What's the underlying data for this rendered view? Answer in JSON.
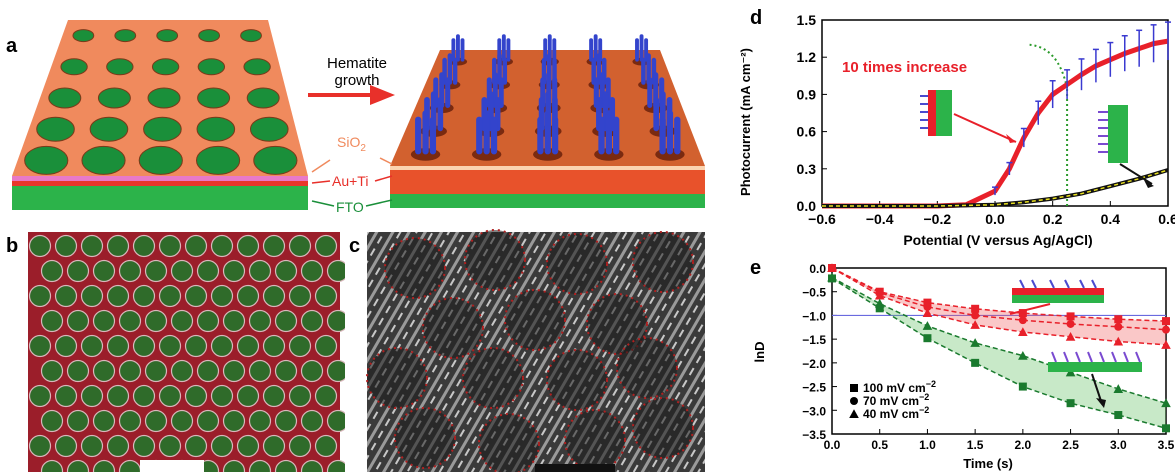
{
  "panels": {
    "a": {
      "label": "a",
      "arrow_text_line1": "Hematite",
      "arrow_text_line2": "growth",
      "layers": {
        "sio2_base": "SiO",
        "sio2_sub": "2",
        "auti": "Au+Ti",
        "fto": "FTO"
      },
      "colors": {
        "sio2": "#f08a5d",
        "auti": "#e8362b",
        "fto": "#2cb34a",
        "hole": "#1a8f3a",
        "nanorod": "#3344cc"
      }
    },
    "b": {
      "label": "b"
    },
    "c": {
      "label": "c"
    },
    "d": {
      "label": "d"
    },
    "e": {
      "label": "e"
    }
  },
  "chart_data": [
    {
      "panel": "d",
      "type": "line",
      "xlabel": "Potential (V versus Ag/AgCl)",
      "ylabel": "Photocurrent (mA cm⁻²)",
      "xlim": [
        -0.6,
        0.6
      ],
      "ylim": [
        0.0,
        1.5
      ],
      "xticks": [
        -0.6,
        -0.4,
        -0.2,
        0.0,
        0.2,
        0.4,
        0.6
      ],
      "xtick_labels": [
        "−0.6",
        "−0.4",
        "−0.2",
        "0.0",
        "0.2",
        "0.4",
        "0.6"
      ],
      "yticks": [
        0.0,
        0.3,
        0.6,
        0.9,
        1.2,
        1.5
      ],
      "ytick_labels": [
        "0.0",
        "0.3",
        "0.6",
        "0.9",
        "1.2",
        "1.5"
      ],
      "annotation": "10 times increase",
      "vline_x": 0.25,
      "series": [
        {
          "color": "#e8202a",
          "x": [
            -0.6,
            -0.4,
            -0.2,
            -0.1,
            0.0,
            0.05,
            0.1,
            0.15,
            0.2,
            0.25,
            0.3,
            0.35,
            0.4,
            0.45,
            0.5,
            0.55,
            0.6
          ],
          "y": [
            0.0,
            0.0,
            0.0,
            0.01,
            0.12,
            0.3,
            0.55,
            0.75,
            0.9,
            0.98,
            1.06,
            1.13,
            1.18,
            1.23,
            1.27,
            1.31,
            1.33
          ]
        },
        {
          "color": "#111111",
          "x": [
            -0.6,
            -0.4,
            -0.2,
            0.0,
            0.1,
            0.2,
            0.3,
            0.4,
            0.5,
            0.6
          ],
          "y": [
            0.0,
            0.0,
            0.0,
            0.01,
            0.03,
            0.06,
            0.1,
            0.16,
            0.22,
            0.29
          ]
        }
      ]
    },
    {
      "panel": "e",
      "type": "line",
      "xlabel": "Time (s)",
      "ylabel": "lnD",
      "xlim": [
        0.0,
        3.5
      ],
      "ylim": [
        -3.5,
        0.0
      ],
      "xticks": [
        0.0,
        0.5,
        1.0,
        1.5,
        2.0,
        2.5,
        3.0,
        3.5
      ],
      "xtick_labels": [
        "0.0",
        "0.5",
        "1.0",
        "1.5",
        "2.0",
        "2.5",
        "3.0",
        "3.5"
      ],
      "yticks": [
        0.0,
        -0.5,
        -1.0,
        -1.5,
        -2.0,
        -2.5,
        -3.0,
        -3.5
      ],
      "ytick_labels": [
        "0.0",
        "−0.5",
        "−1.0",
        "−1.5",
        "−2.0",
        "−2.5",
        "−3.0",
        "−3.5"
      ],
      "hline_y": -1.0,
      "legend": [
        {
          "marker": "square",
          "label": "100 mV cm",
          "sup": "−2"
        },
        {
          "marker": "circle",
          "label": "70 mV cm",
          "sup": "−2"
        },
        {
          "marker": "triangle",
          "label": "40 mV cm",
          "sup": "−2"
        }
      ],
      "series": [
        {
          "color": "#e8202a",
          "marker": "square",
          "x": [
            0.0,
            0.5,
            1.0,
            1.5,
            2.0,
            2.5,
            3.0,
            3.5
          ],
          "y": [
            0.0,
            -0.5,
            -0.73,
            -0.86,
            -0.95,
            -1.02,
            -1.08,
            -1.12
          ]
        },
        {
          "color": "#e8202a",
          "marker": "circle",
          "x": [
            0.0,
            0.5,
            1.0,
            1.5,
            2.0,
            2.5,
            3.0,
            3.5
          ],
          "y": [
            0.0,
            -0.52,
            -0.82,
            -1.0,
            -1.1,
            -1.18,
            -1.24,
            -1.3
          ]
        },
        {
          "color": "#e8202a",
          "marker": "triangle",
          "x": [
            0.0,
            0.5,
            1.0,
            1.5,
            2.0,
            2.5,
            3.0,
            3.5
          ],
          "y": [
            0.0,
            -0.58,
            -0.95,
            -1.2,
            -1.35,
            -1.45,
            -1.55,
            -1.62
          ]
        },
        {
          "color": "#1a7a2e",
          "marker": "triangle",
          "x": [
            0.0,
            0.5,
            1.0,
            1.5,
            2.0,
            2.5,
            3.0,
            3.5
          ],
          "y": [
            -0.2,
            -0.75,
            -1.22,
            -1.58,
            -1.85,
            -2.2,
            -2.55,
            -2.85
          ]
        },
        {
          "color": "#1a7a2e",
          "marker": "square",
          "x": [
            0.0,
            0.5,
            1.0,
            1.5,
            2.0,
            2.5,
            3.0,
            3.5
          ],
          "y": [
            -0.22,
            -0.85,
            -1.48,
            -2.0,
            -2.5,
            -2.85,
            -3.1,
            -3.38
          ]
        }
      ]
    }
  ]
}
